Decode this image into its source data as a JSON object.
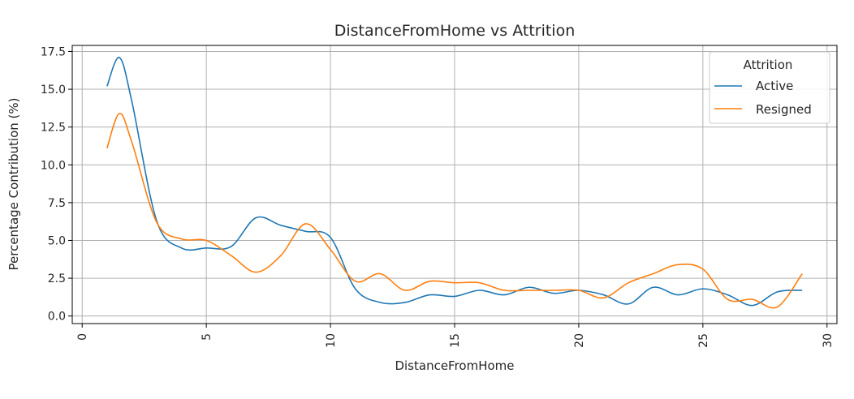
{
  "chart_data": {
    "type": "line",
    "title": "DistanceFromHome vs Attrition",
    "xlabel": "DistanceFromHome",
    "ylabel": "Percentage Contribution (%)",
    "xlim": [
      -0.4,
      30.4
    ],
    "ylim": [
      -0.5,
      17.9
    ],
    "xticks": [
      0,
      5,
      10,
      15,
      20,
      25,
      30
    ],
    "xtick_labels": [
      "0",
      "5",
      "10",
      "15",
      "20",
      "25",
      "30"
    ],
    "yticks": [
      0.0,
      2.5,
      5.0,
      7.5,
      10.0,
      12.5,
      15.0,
      17.5
    ],
    "ytick_labels": [
      "0.0",
      "2.5",
      "5.0",
      "7.5",
      "10.0",
      "12.5",
      "15.0",
      "17.5"
    ],
    "grid": true,
    "legend": {
      "title": "Attrition",
      "placement": "upper right"
    },
    "series": [
      {
        "name": "Active",
        "color": "#1f77b4",
        "x": [
          1,
          1.5,
          2,
          3,
          4,
          5,
          6,
          7,
          8,
          9,
          10,
          11,
          12,
          13,
          14,
          15,
          16,
          17,
          18,
          19,
          20,
          21,
          22,
          23,
          24,
          25,
          26,
          27,
          28,
          29
        ],
        "y": [
          15.2,
          17.1,
          14.2,
          6.3,
          4.5,
          4.5,
          4.6,
          6.5,
          6.0,
          5.6,
          5.2,
          1.8,
          0.9,
          0.9,
          1.4,
          1.3,
          1.7,
          1.4,
          1.9,
          1.5,
          1.7,
          1.4,
          0.8,
          1.9,
          1.4,
          1.8,
          1.4,
          0.7,
          1.6,
          1.7
        ]
      },
      {
        "name": "Resigned",
        "color": "#ff7f0e",
        "x": [
          1,
          1.5,
          2,
          3,
          4,
          5,
          6,
          7,
          8,
          9,
          10,
          11,
          12,
          13,
          14,
          15,
          16,
          17,
          18,
          19,
          20,
          21,
          22,
          23,
          24,
          25,
          26,
          27,
          28,
          29
        ],
        "y": [
          11.1,
          13.4,
          11.5,
          6.2,
          5.1,
          5.0,
          4.0,
          2.9,
          4.0,
          6.1,
          4.4,
          2.3,
          2.8,
          1.7,
          2.3,
          2.2,
          2.2,
          1.7,
          1.7,
          1.7,
          1.7,
          1.2,
          2.2,
          2.8,
          3.4,
          3.1,
          1.1,
          1.1,
          0.6,
          2.8
        ]
      }
    ]
  }
}
